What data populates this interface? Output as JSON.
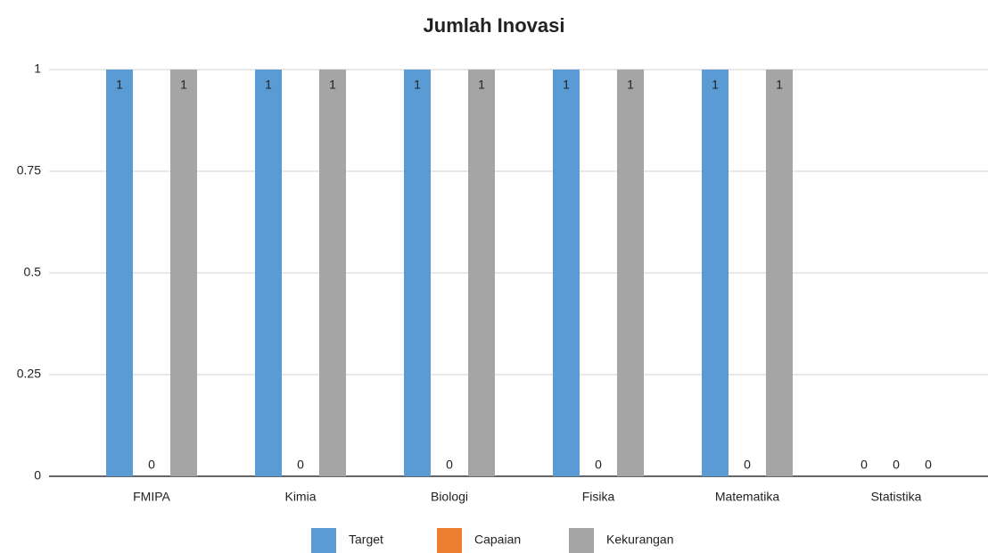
{
  "chart_data": {
    "type": "bar",
    "title": "Jumlah Inovasi",
    "categories": [
      "FMIPA",
      "Kimia",
      "Biologi",
      "Fisika",
      "Matematika",
      "Statistika"
    ],
    "series": [
      {
        "name": "Target",
        "color": "#5b9bd5",
        "values": [
          1,
          1,
          1,
          1,
          1,
          0
        ]
      },
      {
        "name": "Capaian",
        "color": "#ed7d31",
        "values": [
          0,
          0,
          0,
          0,
          0,
          0
        ]
      },
      {
        "name": "Kekurangan",
        "color": "#a5a5a5",
        "values": [
          1,
          1,
          1,
          1,
          1,
          0
        ]
      }
    ],
    "ylim": [
      0,
      1
    ],
    "yticks": [
      0,
      0.25,
      0.5,
      0.75,
      1
    ],
    "grid": true,
    "legend": "bottom"
  }
}
